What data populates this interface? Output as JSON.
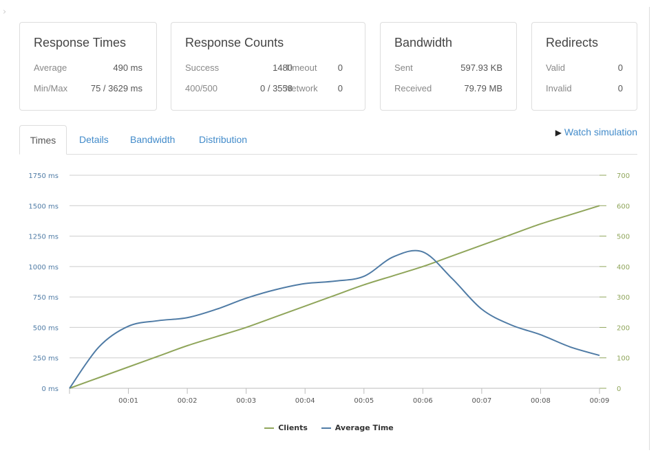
{
  "cards": {
    "times": {
      "title": "Response Times",
      "avg_label": "Average",
      "avg_value": "490 ms",
      "minmax_label": "Min/Max",
      "minmax_value": "75 / 3629 ms"
    },
    "counts": {
      "title": "Response Counts",
      "success_label": "Success",
      "success_value": "1480",
      "timeout_label": "Timeout",
      "timeout_value": "0",
      "e400_label": "400/500",
      "e400_value": "0 / 3558",
      "network_label": "Network",
      "network_value": "0"
    },
    "bandwidth": {
      "title": "Bandwidth",
      "sent_label": "Sent",
      "sent_value": "597.93 KB",
      "recv_label": "Received",
      "recv_value": "79.79 MB"
    },
    "redirects": {
      "title": "Redirects",
      "valid_label": "Valid",
      "valid_value": "0",
      "invalid_label": "Invalid",
      "invalid_value": "0"
    }
  },
  "tabs": [
    {
      "label": "Times",
      "active": true
    },
    {
      "label": "Details"
    },
    {
      "label": "Bandwidth"
    },
    {
      "label": "Distribution"
    }
  ],
  "watch_label": "Watch simulation",
  "chart_data": {
    "type": "line",
    "x": [
      0,
      0.5,
      1,
      1.5,
      2,
      2.5,
      3,
      3.5,
      4,
      4.5,
      5,
      5.5,
      6,
      6.5,
      7,
      7.5,
      8,
      8.5,
      9
    ],
    "x_ticks": [
      "00:01",
      "00:02",
      "00:03",
      "00:04",
      "00:05",
      "00:06",
      "00:07",
      "00:08",
      "00:09"
    ],
    "xlim": [
      0,
      9
    ],
    "y_left_ticks": [
      "0 ms",
      "250 ms",
      "500 ms",
      "750 ms",
      "1000 ms",
      "1250 ms",
      "1500 ms",
      "1750 ms"
    ],
    "y_left_lim": [
      0,
      1750
    ],
    "y_right_ticks": [
      "0",
      "100",
      "200",
      "300",
      "400",
      "500",
      "600",
      "700"
    ],
    "y_right_lim": [
      0,
      700
    ],
    "series": [
      {
        "name": "Clients",
        "axis": "right",
        "color": "#8fa55a",
        "values": [
          0,
          35,
          70,
          105,
          140,
          170,
          200,
          235,
          270,
          305,
          340,
          370,
          400,
          435,
          470,
          505,
          540,
          570,
          600
        ]
      },
      {
        "name": "Average Time",
        "axis": "left",
        "color": "#4f7ba5",
        "values": [
          0,
          340,
          510,
          555,
          580,
          650,
          740,
          810,
          860,
          880,
          920,
          1080,
          1120,
          900,
          650,
          520,
          440,
          340,
          270
        ]
      }
    ]
  }
}
